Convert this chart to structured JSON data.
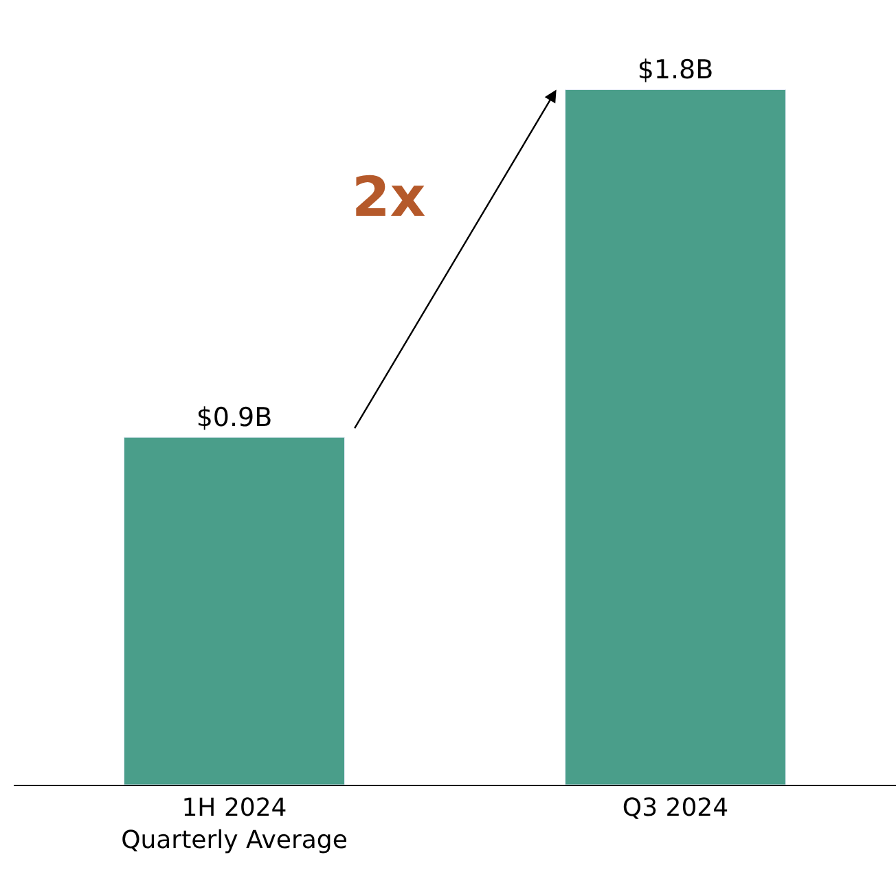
{
  "chart_data": {
    "type": "bar",
    "categories": [
      "1H 2024\nQuarterly Average",
      "Q3 2024"
    ],
    "values": [
      0.9,
      1.8
    ],
    "value_labels": [
      "$0.9B",
      "$1.8B"
    ],
    "color": "#4a9e8a",
    "annotations": [
      "2x"
    ]
  }
}
